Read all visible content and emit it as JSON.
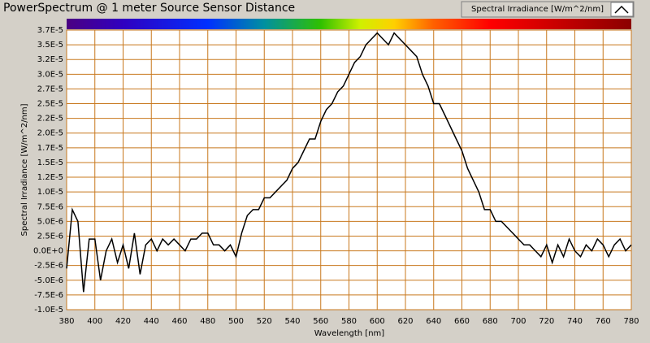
{
  "chart_data": {
    "type": "line",
    "title": "PowerSpectrum @ 1 meter Source Sensor Distance",
    "x_label": "Wavelength [nm]",
    "y_label": "Spectral Irradiance [W/m^2/nm]",
    "legend": "bottom-right",
    "grid": true,
    "xlim": [
      380,
      780
    ],
    "xticks": [
      380,
      400,
      420,
      440,
      460,
      480,
      500,
      520,
      540,
      560,
      580,
      600,
      620,
      640,
      660,
      680,
      700,
      720,
      740,
      760,
      780
    ],
    "ylim": [
      -1e-05,
      3.75e-05
    ],
    "yticks": [
      {
        "value": -1e-05,
        "label": "-1.0E-5"
      },
      {
        "value": -7.5e-06,
        "label": "-7.5E-6"
      },
      {
        "value": -5e-06,
        "label": "-5.0E-6"
      },
      {
        "value": -2.5e-06,
        "label": "-2.5E-6"
      },
      {
        "value": 0,
        "label": "0.0E+0"
      },
      {
        "value": 2.5e-06,
        "label": "2.5E-6"
      },
      {
        "value": 5e-06,
        "label": "5.0E-6"
      },
      {
        "value": 7.5e-06,
        "label": "7.5E-6"
      },
      {
        "value": 1e-05,
        "label": "1.0E-5"
      },
      {
        "value": 1.25e-05,
        "label": "1.2E-5"
      },
      {
        "value": 1.5e-05,
        "label": "1.5E-5"
      },
      {
        "value": 1.75e-05,
        "label": "1.7E-5"
      },
      {
        "value": 2e-05,
        "label": "2.0E-5"
      },
      {
        "value": 2.25e-05,
        "label": "2.2E-5"
      },
      {
        "value": 2.5e-05,
        "label": "2.5E-5"
      },
      {
        "value": 2.75e-05,
        "label": "2.7E-5"
      },
      {
        "value": 3e-05,
        "label": "3.0E-5"
      },
      {
        "value": 3.25e-05,
        "label": "3.2E-5"
      },
      {
        "value": 3.5e-05,
        "label": "3.5E-5"
      },
      {
        "value": 3.75e-05,
        "label": "3.7E-5"
      }
    ],
    "x": [
      380,
      384,
      388,
      392,
      396,
      400,
      404,
      408,
      412,
      416,
      420,
      424,
      428,
      432,
      436,
      440,
      444,
      448,
      452,
      456,
      460,
      464,
      468,
      472,
      476,
      480,
      484,
      488,
      492,
      496,
      500,
      504,
      508,
      512,
      516,
      520,
      524,
      528,
      532,
      536,
      540,
      544,
      548,
      552,
      556,
      560,
      564,
      568,
      572,
      576,
      580,
      584,
      588,
      592,
      596,
      600,
      604,
      608,
      612,
      616,
      620,
      624,
      628,
      632,
      636,
      640,
      644,
      648,
      652,
      656,
      660,
      664,
      668,
      672,
      676,
      680,
      684,
      688,
      692,
      696,
      700,
      704,
      708,
      712,
      716,
      720,
      724,
      728,
      732,
      736,
      740,
      744,
      748,
      752,
      756,
      760,
      764,
      768,
      772,
      776,
      780
    ],
    "series": [
      {
        "name": "Spectral Irradiance [W/m^2/nm]",
        "color": "#000000",
        "values": [
          -3e-06,
          7e-06,
          5e-06,
          -7e-06,
          2e-06,
          2e-06,
          -5e-06,
          0,
          2e-06,
          -2e-06,
          1e-06,
          -3e-06,
          3e-06,
          -4e-06,
          1e-06,
          2e-06,
          0,
          2e-06,
          1e-06,
          2e-06,
          1e-06,
          0,
          2e-06,
          2e-06,
          3e-06,
          3e-06,
          1e-06,
          1e-06,
          0,
          1e-06,
          -1e-06,
          3e-06,
          6e-06,
          7e-06,
          7e-06,
          9e-06,
          9e-06,
          1e-05,
          1.1e-05,
          1.2e-05,
          1.4e-05,
          1.5e-05,
          1.7e-05,
          1.9e-05,
          1.9e-05,
          2.2e-05,
          2.4e-05,
          2.5e-05,
          2.7e-05,
          2.8e-05,
          3e-05,
          3.2e-05,
          3.3e-05,
          3.5e-05,
          3.6e-05,
          3.7e-05,
          3.6e-05,
          3.5e-05,
          3.7e-05,
          3.6e-05,
          3.5e-05,
          3.4e-05,
          3.3e-05,
          3e-05,
          2.8e-05,
          2.5e-05,
          2.5e-05,
          2.3e-05,
          2.1e-05,
          1.9e-05,
          1.7e-05,
          1.4e-05,
          1.2e-05,
          1e-05,
          7e-06,
          7e-06,
          5e-06,
          5e-06,
          4e-06,
          3e-06,
          2e-06,
          1e-06,
          1e-06,
          0,
          -1e-06,
          1e-06,
          -2e-06,
          1e-06,
          -1e-06,
          2e-06,
          0,
          -1e-06,
          1e-06,
          0,
          2e-06,
          1e-06,
          -1e-06,
          1e-06,
          2e-06,
          0,
          1e-06
        ]
      }
    ]
  }
}
